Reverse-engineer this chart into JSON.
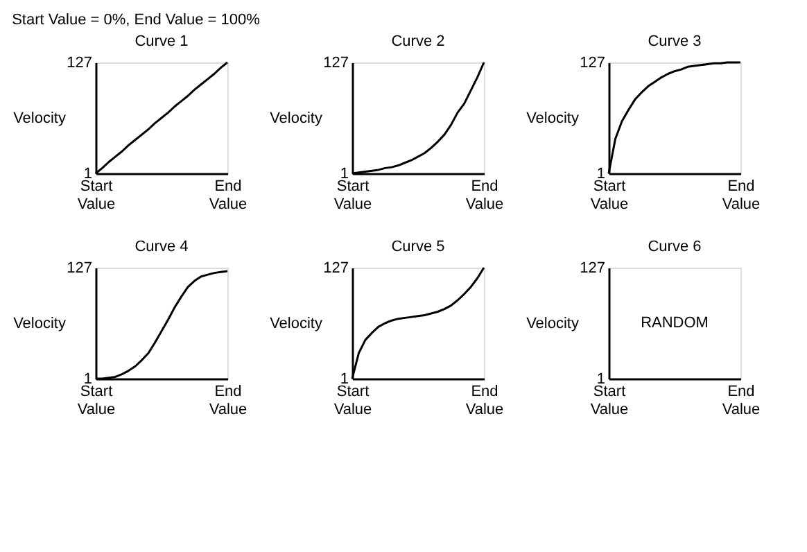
{
  "chart_data": [
    {
      "type": "line",
      "title": "Curve 1",
      "ylabel": "Velocity",
      "annotations": [
        "Start Value = 0%, End Value = 100%"
      ],
      "categories": [
        "Start Value",
        null,
        null,
        null,
        null,
        null,
        null,
        null,
        null,
        null,
        null,
        null,
        null,
        null,
        null,
        null,
        null,
        null,
        null,
        null,
        "End Value"
      ],
      "ylim": [
        1,
        127
      ],
      "yticks": [
        1,
        127
      ],
      "series": [
        {
          "color": "#000000",
          "values": [
            1,
            7,
            14,
            20,
            26,
            33,
            39,
            45,
            51,
            58,
            64,
            70,
            77,
            83,
            89,
            96,
            102,
            108,
            114,
            121,
            127
          ]
        }
      ]
    },
    {
      "type": "line",
      "title": "Curve 2",
      "ylabel": "Velocity",
      "categories": [
        "Start Value",
        null,
        null,
        null,
        null,
        null,
        null,
        null,
        null,
        null,
        null,
        null,
        null,
        null,
        null,
        null,
        null,
        null,
        null,
        null,
        "End Value"
      ],
      "ylim": [
        1,
        127
      ],
      "yticks": [
        1,
        127
      ],
      "series": [
        {
          "color": "#000000",
          "values": [
            1,
            2,
            3,
            4,
            5,
            7,
            8,
            10,
            13,
            16,
            20,
            24,
            30,
            37,
            45,
            56,
            70,
            80,
            95,
            110,
            127
          ]
        }
      ]
    },
    {
      "type": "line",
      "title": "Curve 3",
      "ylabel": "Velocity",
      "categories": [
        "Start Value",
        null,
        null,
        null,
        null,
        null,
        null,
        null,
        null,
        null,
        null,
        null,
        null,
        null,
        null,
        null,
        null,
        null,
        null,
        null,
        "End Value"
      ],
      "ylim": [
        1,
        127
      ],
      "yticks": [
        1,
        127
      ],
      "series": [
        {
          "color": "#000000",
          "values": [
            1,
            40,
            60,
            73,
            85,
            93,
            100,
            105,
            110,
            114,
            117,
            119,
            122,
            123,
            124,
            125,
            126,
            126,
            127,
            127,
            127
          ]
        }
      ]
    },
    {
      "type": "line",
      "title": "Curve 4",
      "ylabel": "Velocity",
      "categories": [
        "Start Value",
        null,
        null,
        null,
        null,
        null,
        null,
        null,
        null,
        null,
        null,
        null,
        null,
        null,
        null,
        null,
        null,
        null,
        null,
        null,
        "End Value"
      ],
      "ylim": [
        1,
        127
      ],
      "yticks": [
        1,
        127
      ],
      "series": [
        {
          "color": "#000000",
          "values": [
            1,
            1,
            2,
            3,
            6,
            10,
            15,
            22,
            30,
            42,
            55,
            68,
            82,
            94,
            105,
            112,
            117,
            119,
            121,
            122,
            123
          ]
        }
      ]
    },
    {
      "type": "line",
      "title": "Curve 5",
      "ylabel": "Velocity",
      "categories": [
        "Start Value",
        null,
        null,
        null,
        null,
        null,
        null,
        null,
        null,
        null,
        null,
        null,
        null,
        null,
        null,
        null,
        null,
        null,
        null,
        null,
        "End Value"
      ],
      "ylim": [
        1,
        127
      ],
      "yticks": [
        1,
        127
      ],
      "series": [
        {
          "color": "#000000",
          "values": [
            1,
            30,
            45,
            53,
            60,
            64,
            67,
            69,
            70,
            71,
            72,
            73,
            75,
            77,
            80,
            84,
            90,
            97,
            105,
            115,
            127
          ]
        }
      ]
    },
    {
      "type": "line",
      "title": "Curve 6",
      "ylabel": "Velocity",
      "annotations": [
        "RANDOM"
      ],
      "categories": [
        "Start Value",
        null,
        null,
        null,
        null,
        null,
        null,
        null,
        null,
        null,
        null,
        null,
        null,
        null,
        null,
        null,
        null,
        null,
        null,
        null,
        "End Value"
      ],
      "ylim": [
        1,
        127
      ],
      "yticks": [
        1,
        127
      ]
    }
  ]
}
